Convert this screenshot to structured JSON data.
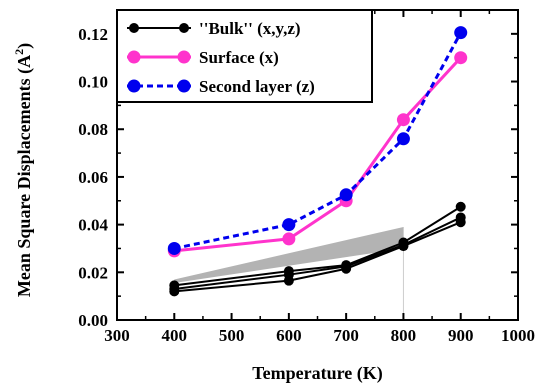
{
  "chart_data": {
    "type": "line",
    "xlabel": "Temperature (K)",
    "ylabel": "Mean Square Displacements (A",
    "ylabel_superscript": "2",
    "ylabel_close": ")",
    "xlim": [
      300,
      1000
    ],
    "ylim": [
      0.0,
      0.13
    ],
    "x_ticks": [
      300,
      400,
      500,
      600,
      700,
      800,
      900,
      1000
    ],
    "x_tick_labels": [
      "300",
      "400",
      "500",
      "600",
      "700",
      "800",
      "900",
      "1000"
    ],
    "y_ticks": [
      0.0,
      0.02,
      0.04,
      0.06,
      0.08,
      0.1,
      0.12
    ],
    "y_tick_labels": [
      "0.00",
      "0.02",
      "0.04",
      "0.06",
      "0.08",
      "0.10",
      "0.12"
    ],
    "grid": false,
    "legend_position": "top-left",
    "series": [
      {
        "name": "''Bulk'' (x,y,z)",
        "color": "#000000",
        "dashed": false,
        "x": [
          400,
          600,
          700,
          800,
          900
        ],
        "y": [
          0.012,
          0.0165,
          0.0215,
          0.031,
          0.041
        ]
      },
      {
        "x": [
          400,
          600,
          700,
          800,
          900
        ],
        "y": [
          0.013,
          0.019,
          0.0225,
          0.0315,
          0.043
        ],
        "color": "#000000",
        "dashed": false
      },
      {
        "x": [
          400,
          600,
          700,
          800,
          900
        ],
        "y": [
          0.0145,
          0.0205,
          0.023,
          0.0325,
          0.0475
        ],
        "color": "#000000",
        "dashed": false
      },
      {
        "name": "Surface (x)",
        "color": "#ff33cc",
        "dashed": false,
        "x": [
          400,
          600,
          700,
          800,
          900
        ],
        "y": [
          0.029,
          0.034,
          0.05,
          0.084,
          0.11
        ]
      },
      {
        "name": "Second layer (z)",
        "color": "#0000ee",
        "dashed": true,
        "x": [
          400,
          600,
          700,
          800,
          900
        ],
        "y": [
          0.03,
          0.04,
          0.0525,
          0.076,
          0.1205
        ]
      }
    ],
    "shaded_band": {
      "color": "#b3b3b3",
      "x": [
        400,
        800
      ],
      "y_lower": [
        0.0155,
        0.03
      ],
      "y_upper": [
        0.017,
        0.039
      ]
    }
  }
}
